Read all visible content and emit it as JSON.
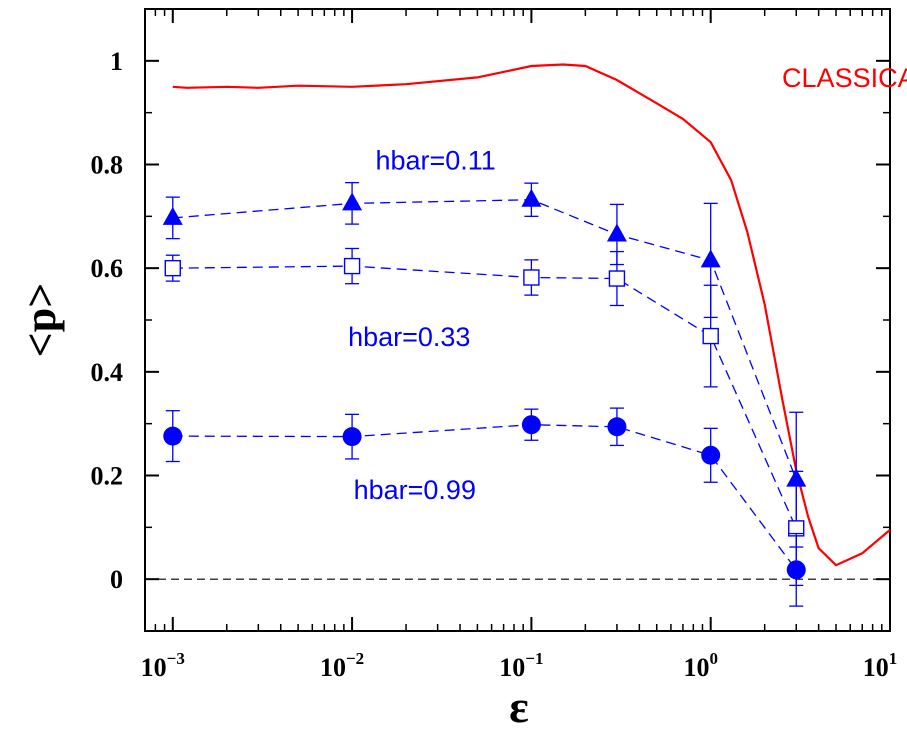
{
  "chart_data": {
    "type": "line",
    "title": "",
    "xlabel": "ε",
    "ylabel": "<p>",
    "xscale": "log",
    "xlim": [
      0.0007,
      10
    ],
    "ylim": [
      -0.1,
      1.1
    ],
    "x_ticks": [
      {
        "value": 0.001,
        "base": "10",
        "exp": "−3"
      },
      {
        "value": 0.01,
        "base": "10",
        "exp": "−2"
      },
      {
        "value": 0.1,
        "base": "10",
        "exp": "−1"
      },
      {
        "value": 1,
        "base": "10",
        "exp": "0"
      },
      {
        "value": 10,
        "base": "10",
        "exp": "1"
      }
    ],
    "y_ticks": [
      {
        "value": 0,
        "label": "0"
      },
      {
        "value": 0.2,
        "label": "0.2"
      },
      {
        "value": 0.4,
        "label": "0.4"
      },
      {
        "value": 0.6,
        "label": "0.6"
      },
      {
        "value": 0.8,
        "label": "0.8"
      },
      {
        "value": 1,
        "label": "1"
      }
    ],
    "grid": false,
    "reference_line": {
      "y": 0,
      "style": "dashed",
      "color": "#000000"
    },
    "series": [
      {
        "name": "CLASSICAL",
        "style": "solid",
        "color": "#ff0000",
        "marker": "none",
        "x": [
          0.001,
          0.0012,
          0.002,
          0.003,
          0.005,
          0.01,
          0.02,
          0.05,
          0.1,
          0.15,
          0.2,
          0.3,
          0.5,
          0.7,
          1.0,
          1.3,
          1.6,
          2.0,
          2.5,
          3.0,
          3.5,
          4.0,
          5.0,
          7.0,
          10.0
        ],
        "y": [
          0.95,
          0.948,
          0.95,
          0.948,
          0.952,
          0.95,
          0.955,
          0.968,
          0.99,
          0.993,
          0.99,
          0.963,
          0.918,
          0.888,
          0.843,
          0.77,
          0.67,
          0.53,
          0.35,
          0.21,
          0.12,
          0.06,
          0.027,
          0.05,
          0.095
        ]
      },
      {
        "name": "hbar=0.11",
        "style": "dashed",
        "color": "#0000ff",
        "marker": "filled-triangle",
        "x": [
          0.001,
          0.01,
          0.1,
          0.3,
          1.0,
          3.0
        ],
        "y": [
          0.697,
          0.725,
          0.732,
          0.665,
          0.615,
          0.192
        ],
        "err": [
          0.04,
          0.04,
          0.032,
          0.058,
          0.11,
          0.13
        ]
      },
      {
        "name": "hbar=0.33",
        "style": "dashed",
        "color": "#0000ff",
        "marker": "open-square",
        "x": [
          0.001,
          0.01,
          0.1,
          0.3,
          1.0,
          3.0
        ],
        "y": [
          0.6,
          0.604,
          0.582,
          0.58,
          0.469,
          0.098
        ],
        "err": [
          0.025,
          0.034,
          0.034,
          0.052,
          0.098,
          0.11
        ]
      },
      {
        "name": "hbar=0.99",
        "style": "dashed",
        "color": "#0000ff",
        "marker": "filled-circle",
        "x": [
          0.001,
          0.01,
          0.1,
          0.3,
          1.0,
          3.0
        ],
        "y": [
          0.276,
          0.275,
          0.298,
          0.294,
          0.239,
          0.018
        ],
        "err": [
          0.049,
          0.043,
          0.03,
          0.036,
          0.052,
          0.07
        ]
      }
    ],
    "annotations": [
      {
        "text": "CLASSICAL",
        "x": 2.5,
        "y": 0.95,
        "color": "#ff0000"
      },
      {
        "text": "hbar=0.11",
        "x": 0.0135,
        "y": 0.79,
        "color": "#0000ff"
      },
      {
        "text": "hbar=0.33",
        "x": 0.0095,
        "y": 0.45,
        "color": "#0000ff"
      },
      {
        "text": "hbar=0.99",
        "x": 0.0102,
        "y": 0.155,
        "color": "#0000ff"
      }
    ]
  }
}
